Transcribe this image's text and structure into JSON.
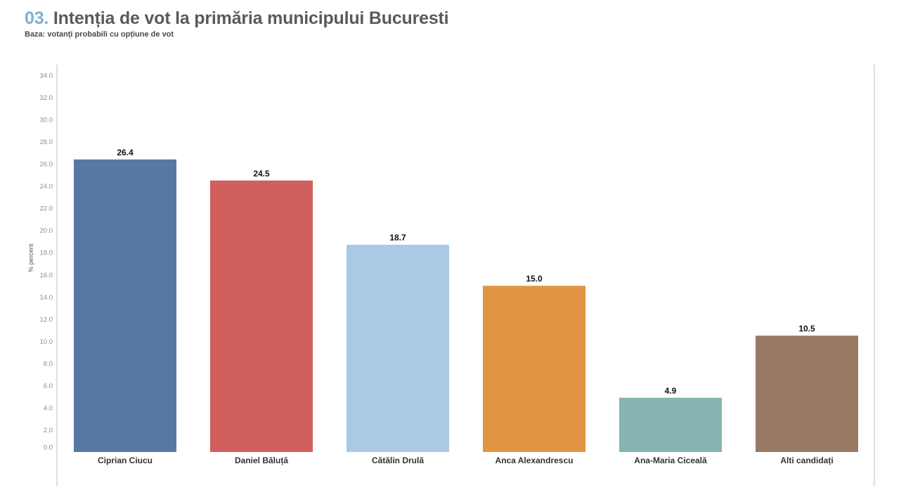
{
  "header": {
    "number": "03.",
    "title": "Intenția de vot la primăria municipului Bucuresti",
    "subtitle": "Baza: votanți probabili cu opțiune de vot"
  },
  "chart_data": {
    "type": "bar",
    "ylabel": "% percent",
    "ylim": [
      0,
      34
    ],
    "yticks": [
      "0.0",
      "2.0",
      "4.0",
      "6.0",
      "8.0",
      "10.0",
      "12.0",
      "14.0",
      "16.0",
      "18.0",
      "20.0",
      "22.0",
      "24.0",
      "26.0",
      "28.0",
      "30.0",
      "32.0",
      "34.0"
    ],
    "grid": false,
    "categories": [
      "Ciprian Ciucu",
      "Daniel Băluță",
      "Cătălin Drulă",
      "Anca Alexandrescu",
      "Ana-Maria Ciceală",
      "Alti candidați"
    ],
    "values": [
      26.4,
      24.5,
      18.7,
      15.0,
      4.9,
      10.5
    ],
    "value_labels": [
      "26.4",
      "24.5",
      "18.7",
      "15.0",
      "4.9",
      "10.5"
    ],
    "colors": [
      "#5878a4",
      "#d15f5e",
      "#a9c9e4",
      "#e29445",
      "#86b5b1",
      "#987a64"
    ]
  }
}
